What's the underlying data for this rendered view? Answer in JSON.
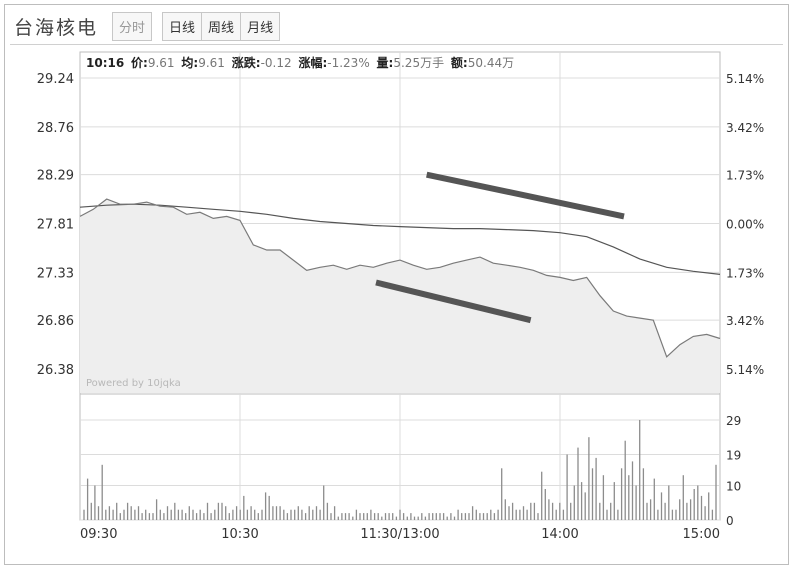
{
  "header": {
    "stock_name": "台海核电",
    "tabs": [
      {
        "label": "分时",
        "active": false
      },
      {
        "label": "日线",
        "active": false
      },
      {
        "label": "周线",
        "active": false
      },
      {
        "label": "月线",
        "active": false
      }
    ]
  },
  "info_bar": {
    "time": "10:16",
    "price_label": "价:",
    "price": "9.61",
    "avg_label": "均:",
    "avg": "9.61",
    "change_label": "涨跌:",
    "change": "-0.12",
    "pct_label": "涨幅:",
    "pct": "-1.23%",
    "vol_label": "量:",
    "vol": "5.25万手",
    "amount_label": "额:",
    "amount": "50.44万"
  },
  "watermark": "Powered by 10jqka",
  "colors": {
    "price_line": "#7a7a7a",
    "avg_line": "#555555",
    "fill": "#eeeeee",
    "trend_mark": "#555555",
    "volume_bar": "#8c8c8c",
    "grid": "#dcdcdc"
  },
  "chart_data": {
    "type": "line",
    "y_ticks": [
      "29.24",
      "28.76",
      "28.29",
      "27.81",
      "27.33",
      "26.86",
      "26.38"
    ],
    "pct_ticks": [
      "5.14%",
      "3.42%",
      "1.73%",
      "0.00%",
      "1.73%",
      "3.42%",
      "5.14%"
    ],
    "x_ticks": [
      "09:30",
      "10:30",
      "11:30/13:00",
      "14:00",
      "15:00"
    ],
    "volume_ticks": [
      "29",
      "19",
      "10",
      "0"
    ],
    "ylim": [
      26.38,
      29.24
    ],
    "volume_ylim": [
      0,
      29
    ],
    "grid": true,
    "series": [
      {
        "role": "price",
        "x": [
          0,
          5,
          10,
          15,
          20,
          25,
          30,
          35,
          40,
          45,
          50,
          55,
          60,
          65,
          70,
          75,
          80,
          85,
          90,
          95,
          100,
          105,
          110,
          115,
          120,
          125,
          130,
          135,
          140,
          145,
          150,
          155,
          160,
          165,
          170,
          175,
          180,
          185,
          190,
          195,
          200,
          205,
          210,
          215,
          220,
          225,
          230,
          235,
          240
        ],
        "values": [
          27.88,
          27.95,
          28.05,
          28.0,
          28.0,
          28.02,
          27.98,
          27.97,
          27.9,
          27.92,
          27.86,
          27.88,
          27.84,
          27.6,
          27.55,
          27.55,
          27.45,
          27.35,
          27.38,
          27.4,
          27.36,
          27.4,
          27.38,
          27.42,
          27.45,
          27.4,
          27.36,
          27.38,
          27.42,
          27.45,
          27.48,
          27.42,
          27.4,
          27.38,
          27.35,
          27.3,
          27.28,
          27.25,
          27.28,
          27.1,
          26.95,
          26.9,
          26.88,
          26.86,
          26.5,
          26.62,
          26.7,
          26.72,
          26.68
        ]
      },
      {
        "role": "average",
        "x": [
          0,
          10,
          20,
          30,
          40,
          50,
          60,
          70,
          80,
          90,
          100,
          110,
          120,
          130,
          140,
          150,
          160,
          170,
          180,
          190,
          200,
          210,
          220,
          230,
          240
        ],
        "values": [
          27.97,
          27.99,
          28.0,
          27.99,
          27.97,
          27.95,
          27.93,
          27.9,
          27.86,
          27.83,
          27.81,
          27.79,
          27.78,
          27.77,
          27.76,
          27.76,
          27.75,
          27.74,
          27.72,
          27.68,
          27.58,
          27.46,
          27.38,
          27.34,
          27.31
        ]
      }
    ],
    "volume": [
      3,
      12,
      5,
      10,
      4,
      16,
      3,
      4,
      3,
      5,
      2,
      3,
      5,
      4,
      3,
      4,
      2,
      3,
      2,
      2,
      6,
      3,
      2,
      4,
      3,
      5,
      3,
      3,
      2,
      4,
      3,
      2,
      3,
      2,
      5,
      2,
      3,
      5,
      5,
      4,
      2,
      3,
      4,
      3,
      7,
      3,
      4,
      3,
      2,
      3,
      8,
      7,
      4,
      4,
      4,
      3,
      2,
      3,
      3,
      4,
      3,
      2,
      4,
      3,
      4,
      3,
      10,
      5,
      2,
      4,
      1,
      2,
      2,
      2,
      1,
      3,
      2,
      2,
      2,
      3,
      2,
      2,
      1,
      2,
      2,
      2,
      1,
      3,
      2,
      1,
      2,
      1,
      1,
      2,
      1,
      2,
      2,
      2,
      2,
      2,
      1,
      2,
      1,
      3,
      2,
      2,
      2,
      4,
      3,
      2,
      2,
      2,
      3,
      2,
      3,
      15,
      6,
      4,
      5,
      3,
      3,
      4,
      3,
      5,
      5,
      2,
      14,
      9,
      6,
      5,
      3,
      5,
      3,
      19,
      5,
      10,
      21,
      11,
      8,
      24,
      15,
      18,
      5,
      13,
      3,
      5,
      11,
      3,
      15,
      23,
      13,
      17,
      10,
      29,
      15,
      5,
      6,
      12,
      3,
      8,
      5,
      10,
      3,
      3,
      6,
      13,
      5,
      6,
      9,
      10,
      7,
      4,
      8,
      3,
      16
    ],
    "trend_marks": [
      {
        "x1": 130,
        "y1": 28.29,
        "x2": 204,
        "y2": 27.88
      },
      {
        "x1": 111,
        "y1": 27.23,
        "x2": 169,
        "y2": 26.86
      }
    ]
  }
}
